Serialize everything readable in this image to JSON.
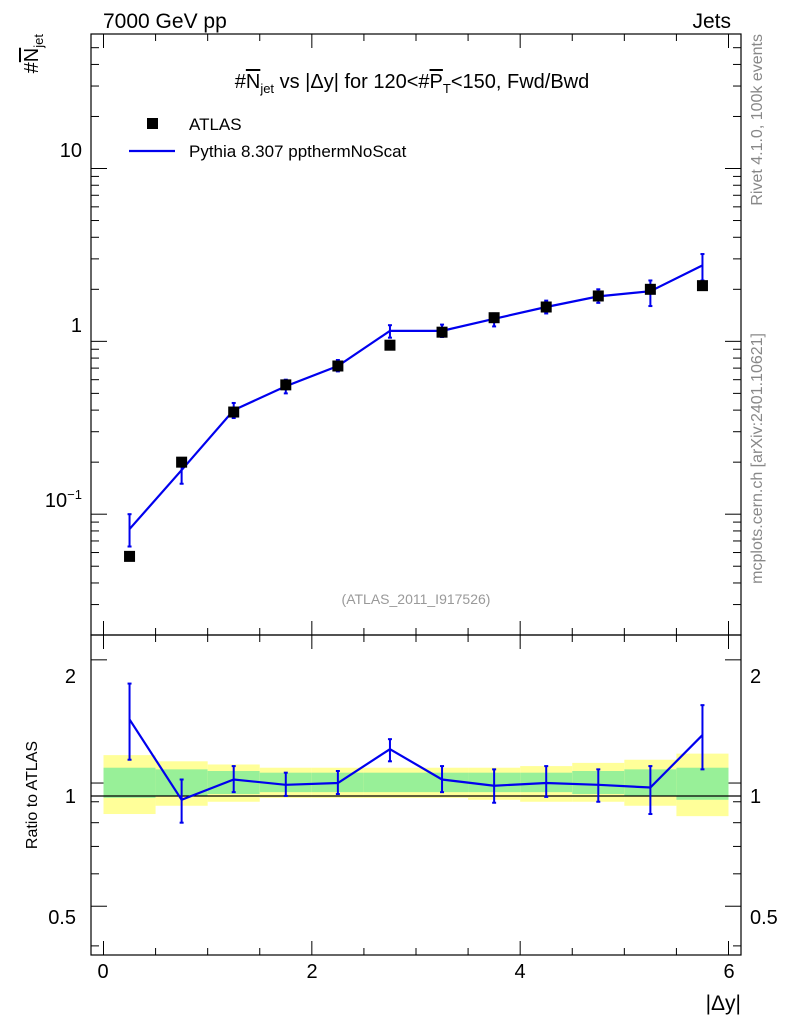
{
  "header": {
    "beam": "7000 GeV pp",
    "category": "Jets",
    "side_rivet": "Rivet 4.1.0,  100k events",
    "side_mcplots": "mcplots.cern.ch [arXiv:2401.10621]",
    "watermark": "(ATLAS_2011_I917526)"
  },
  "chart_data": {
    "type": "scatter",
    "title": {
      "prefix": "#",
      "nbar": "N",
      "nsub": "jet",
      "mid": " vs |Δy| for 120<#",
      "pbar": "P",
      "psub": "T",
      "suffix": "<150, Fwd/Bwd"
    },
    "ylabel": {
      "hash": "#",
      "n": "N",
      "sub": "jet"
    },
    "xlabel": "|Δy|",
    "ratio_ylabel": "Ratio to ATLAS",
    "x_ticks": [
      "0",
      "2",
      "4",
      "6"
    ],
    "y_ticks": [
      "10",
      "1"
    ],
    "y_tick_exp": {
      "base": "10",
      "exp": "−1"
    },
    "ratio_ticks": [
      "2",
      "1",
      "0.5"
    ],
    "xlim": [
      -0.12,
      6.12
    ],
    "ylim": [
      0.02,
      60
    ],
    "ratio_ylim": [
      0.38,
      2.3
    ],
    "legend": {
      "data": "ATLAS",
      "mc": "Pythia 8.307 ppthermNoScat",
      "placement": "top-left"
    },
    "x": [
      0.25,
      0.75,
      1.25,
      1.75,
      2.25,
      2.75,
      3.25,
      3.75,
      4.25,
      4.75,
      5.25,
      5.75
    ],
    "bin_edges": [
      0,
      0.5,
      1.0,
      1.5,
      2.0,
      2.5,
      3.0,
      3.5,
      4.0,
      4.5,
      5.0,
      5.5,
      6.0
    ],
    "series": [
      {
        "name": "ATLAS",
        "values": [
          0.057,
          0.2,
          0.39,
          0.56,
          0.72,
          0.95,
          1.13,
          1.37,
          1.58,
          1.83,
          2.0,
          2.1
        ]
      },
      {
        "name": "Pythia 8.307 ppthermNoScat",
        "values": [
          0.082,
          0.18,
          0.4,
          0.55,
          0.72,
          1.15,
          1.15,
          1.35,
          1.58,
          1.82,
          1.95,
          2.75
        ],
        "err_low": [
          0.065,
          0.15,
          0.36,
          0.5,
          0.67,
          1.05,
          1.06,
          1.22,
          1.45,
          1.67,
          1.6,
          2.25
        ],
        "err_high": [
          0.1,
          0.21,
          0.44,
          0.6,
          0.78,
          1.24,
          1.25,
          1.45,
          1.72,
          2.0,
          2.25,
          3.2
        ]
      }
    ],
    "ratio": {
      "values": [
        1.43,
        0.91,
        1.02,
        0.99,
        1.0,
        1.21,
        1.02,
        0.985,
        1.0,
        0.99,
        0.975,
        1.31
      ],
      "err_low": [
        1.14,
        0.8,
        0.95,
        0.93,
        0.94,
        1.13,
        0.95,
        0.895,
        0.925,
        0.9,
        0.84,
        1.08
      ],
      "err_high": [
        1.75,
        1.02,
        1.1,
        1.06,
        1.07,
        1.28,
        1.1,
        1.08,
        1.1,
        1.08,
        1.1,
        1.55
      ],
      "band_inner_low": [
        0.92,
        0.93,
        0.94,
        0.95,
        0.95,
        0.95,
        0.95,
        0.95,
        0.95,
        0.94,
        0.93,
        0.91
      ],
      "band_inner_high": [
        1.09,
        1.08,
        1.07,
        1.06,
        1.06,
        1.06,
        1.06,
        1.06,
        1.06,
        1.07,
        1.08,
        1.09
      ],
      "band_outer_low": [
        0.84,
        0.88,
        0.9,
        0.92,
        0.92,
        0.92,
        0.92,
        0.91,
        0.9,
        0.9,
        0.88,
        0.83
      ],
      "band_outer_high": [
        1.17,
        1.13,
        1.11,
        1.09,
        1.09,
        1.09,
        1.09,
        1.09,
        1.1,
        1.12,
        1.14,
        1.18
      ]
    },
    "colors": {
      "data": "#000000",
      "mc": "#0000ee",
      "band_inner": "#98f098",
      "band_outer": "#ffff99",
      "watermark": "#999999",
      "side_text": "#888888"
    }
  }
}
